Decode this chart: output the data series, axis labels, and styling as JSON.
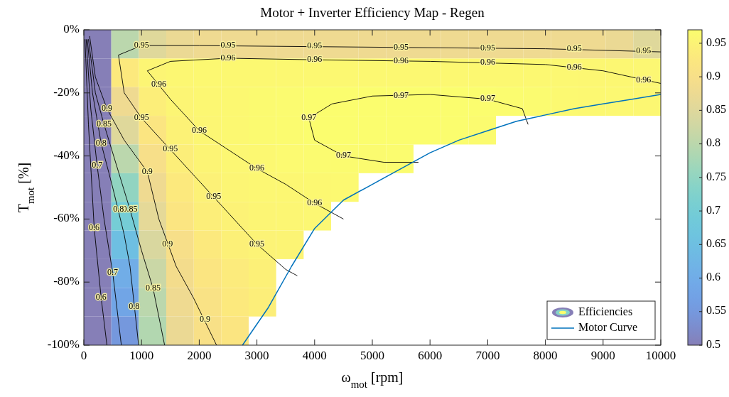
{
  "chart_data": {
    "type": "heatmap",
    "title": "Motor + Inverter Efficiency Map - Regen",
    "xlabel": "ω$_{mot}$ [rpm]",
    "ylabel": "T$_{mot}$ [%]",
    "xlim": [
      0,
      10000
    ],
    "xticks": [
      0,
      1000,
      2000,
      3000,
      4000,
      5000,
      6000,
      7000,
      8000,
      9000,
      10000
    ],
    "ylim": [
      -100,
      0
    ],
    "yticks": [
      {
        "value": -100,
        "label": "-100%"
      },
      {
        "value": -80,
        "label": "-80%"
      },
      {
        "value": -60,
        "label": "-60%"
      },
      {
        "value": -40,
        "label": "-40%"
      },
      {
        "value": -20,
        "label": "-20%"
      },
      {
        "value": 0,
        "label": "0%"
      }
    ],
    "clim": [
      0.5,
      0.97
    ],
    "cticks": [
      0.5,
      0.55,
      0.6,
      0.65,
      0.7,
      0.75,
      0.8,
      0.85,
      0.9,
      0.95
    ],
    "legend": "bottom right",
    "legend_title": "Efficiencies",
    "line_style": "solid",
    "cells": [
      [
        0.5,
        0.8,
        0.85,
        0.87,
        0.88,
        0.88,
        0.88,
        0.88,
        0.88,
        0.88,
        0.88,
        0.88,
        0.88,
        0.88,
        0.88,
        0.88,
        0.88,
        0.88,
        0.88,
        0.87,
        0.85
      ],
      [
        0.5,
        0.93,
        0.955,
        0.96,
        0.962,
        0.962,
        0.962,
        0.962,
        0.962,
        0.962,
        0.962,
        0.962,
        0.962,
        0.962,
        0.962,
        0.962,
        0.962,
        0.961,
        0.96,
        0.96,
        0.958
      ],
      [
        0.5,
        0.88,
        0.94,
        0.955,
        0.96,
        0.962,
        0.965,
        0.967,
        0.97,
        0.972,
        0.972,
        0.972,
        0.972,
        0.972,
        0.972,
        0.969,
        0.966,
        0.963,
        0.962,
        0.961,
        0.96
      ],
      [
        0.5,
        0.85,
        0.92,
        0.95,
        0.957,
        0.962,
        0.965,
        0.968,
        0.971,
        0.973,
        0.973,
        0.973,
        0.972,
        0.97,
        0.968,
        null,
        null,
        null,
        null,
        null,
        null
      ],
      [
        0.5,
        0.8,
        0.9,
        0.94,
        0.953,
        0.959,
        0.962,
        0.964,
        0.966,
        0.968,
        0.968,
        0.969,
        null,
        null,
        null,
        null,
        null,
        null,
        null,
        null,
        null
      ],
      [
        0.5,
        0.75,
        0.88,
        0.93,
        0.948,
        0.955,
        0.958,
        0.96,
        0.962,
        0.963,
        null,
        null,
        null,
        null,
        null,
        null,
        null,
        null,
        null,
        null,
        null
      ],
      [
        0.5,
        0.7,
        0.86,
        0.92,
        0.94,
        0.95,
        0.955,
        0.957,
        0.958,
        null,
        null,
        null,
        null,
        null,
        null,
        null,
        null,
        null,
        null,
        null,
        null
      ],
      [
        0.5,
        0.65,
        0.84,
        0.9,
        0.93,
        0.945,
        0.951,
        0.953,
        null,
        null,
        null,
        null,
        null,
        null,
        null,
        null,
        null,
        null,
        null,
        null,
        null
      ],
      [
        0.5,
        0.6,
        0.82,
        0.89,
        0.92,
        0.935,
        0.945,
        null,
        null,
        null,
        null,
        null,
        null,
        null,
        null,
        null,
        null,
        null,
        null,
        null,
        null
      ],
      [
        0.5,
        0.58,
        0.8,
        0.88,
        0.91,
        0.93,
        0.94,
        null,
        null,
        null,
        null,
        null,
        null,
        null,
        null,
        null,
        null,
        null,
        null,
        null,
        null
      ],
      [
        0.5,
        0.55,
        0.79,
        0.87,
        0.905,
        0.92,
        null,
        null,
        null,
        null,
        null,
        null,
        null,
        null,
        null,
        null,
        null,
        null,
        null,
        null,
        null
      ]
    ],
    "series": [
      {
        "type": "line",
        "color": "#000000",
        "x": [
          7700,
          7600,
          7000,
          6000,
          5000,
          4300,
          3900,
          4000,
          4500,
          5200,
          5800
        ],
        "values": [
          -30,
          -25,
          -22,
          -20.5,
          -21,
          -23.5,
          -28,
          -35,
          -40,
          -42,
          -42
        ]
      },
      {
        "type": "line",
        "color": "#000000",
        "x": [
          10000,
          9000,
          8000,
          6000,
          4000,
          2500,
          1500,
          1100,
          1500,
          2000,
          2500,
          3000,
          3500,
          4000,
          4500
        ],
        "values": [
          -17,
          -13,
          -11,
          -10,
          -9.5,
          -9,
          -10,
          -13,
          -22,
          -32,
          -38,
          -44,
          -49,
          -55,
          -60
        ]
      },
      {
        "type": "line",
        "color": "#000000",
        "x": [
          10000,
          8000,
          5000,
          2000,
          1000,
          600,
          700,
          1000,
          1500,
          2000,
          2500,
          3000,
          3500,
          3700
        ],
        "values": [
          -7,
          -6,
          -5.5,
          -5,
          -5,
          -8,
          -20,
          -28,
          -38,
          -48,
          -58,
          -68,
          -76,
          -78
        ]
      },
      {
        "type": "line",
        "color": "#000000",
        "x": [
          100,
          200,
          400,
          700,
          1100,
          1300,
          1600,
          1900,
          2300
        ],
        "values": [
          -2,
          -15,
          -25,
          -35,
          -45,
          -60,
          -75,
          -85,
          -100
        ]
      },
      {
        "type": "line",
        "color": "#000000",
        "x": [
          80,
          200,
          350,
          600,
          800,
          1000,
          1200,
          1400
        ],
        "values": [
          -3,
          -20,
          -30,
          -45,
          -57,
          -70,
          -82,
          -100
        ]
      },
      {
        "type": "line",
        "color": "#000000",
        "x": [
          60,
          150,
          300,
          500,
          700,
          800,
          950
        ],
        "values": [
          -3,
          -20,
          -36,
          -50,
          -65,
          -75,
          -100
        ]
      },
      {
        "type": "line",
        "color": "#000000",
        "x": [
          40,
          120,
          230,
          350,
          500,
          650
        ],
        "values": [
          -3,
          -25,
          -43,
          -60,
          -77,
          -100
        ]
      },
      {
        "type": "line",
        "color": "#000000",
        "x": [
          20,
          80,
          180,
          300,
          400
        ],
        "values": [
          -3,
          -30,
          -63,
          -85,
          -100
        ]
      },
      {
        "type": "line",
        "name": "Motor Curve",
        "color": "#0072bd",
        "x": [
          2750,
          3200,
          3600,
          4000,
          4500,
          5000,
          5500,
          6000,
          6500,
          7000,
          7500,
          8000,
          8500,
          9000,
          9500,
          10000
        ],
        "values": [
          -100,
          -88,
          -75,
          -63,
          -54,
          -49,
          -44,
          -39,
          -35,
          -32,
          -29,
          -27,
          -25,
          -23.5,
          -22,
          -20.5
        ]
      }
    ],
    "annotations": [
      {
        "text": "0.97",
        "x": 5500,
        "y": -21
      },
      {
        "text": "0.97",
        "x": 7000,
        "y": -22
      },
      {
        "text": "0.97",
        "x": 3900,
        "y": -28
      },
      {
        "text": "0.97",
        "x": 4500,
        "y": -40
      },
      {
        "text": "0.96",
        "x": 1300,
        "y": -17.5
      },
      {
        "text": "0.96",
        "x": 2500,
        "y": -9
      },
      {
        "text": "0.96",
        "x": 4000,
        "y": -9.5
      },
      {
        "text": "0.96",
        "x": 5500,
        "y": -10
      },
      {
        "text": "0.96",
        "x": 7000,
        "y": -10.5
      },
      {
        "text": "0.96",
        "x": 8500,
        "y": -12
      },
      {
        "text": "0.96",
        "x": 9700,
        "y": -16
      },
      {
        "text": "0.96",
        "x": 2000,
        "y": -32
      },
      {
        "text": "0.96",
        "x": 3000,
        "y": -44
      },
      {
        "text": "0.96",
        "x": 4000,
        "y": -55
      },
      {
        "text": "0.95",
        "x": 1000,
        "y": -5
      },
      {
        "text": "0.95",
        "x": 2500,
        "y": -5
      },
      {
        "text": "0.95",
        "x": 4000,
        "y": -5.3
      },
      {
        "text": "0.95",
        "x": 5500,
        "y": -5.6
      },
      {
        "text": "0.95",
        "x": 7000,
        "y": -5.8
      },
      {
        "text": "0.95",
        "x": 8500,
        "y": -6.2
      },
      {
        "text": "0.95",
        "x": 9700,
        "y": -6.8
      },
      {
        "text": "0.95",
        "x": 1000,
        "y": -28
      },
      {
        "text": "0.95",
        "x": 1500,
        "y": -38
      },
      {
        "text": "0.95",
        "x": 2250,
        "y": -53
      },
      {
        "text": "0.95",
        "x": 3000,
        "y": -68
      },
      {
        "text": "0.9",
        "x": 400,
        "y": -25
      },
      {
        "text": "0.9",
        "x": 1100,
        "y": -45
      },
      {
        "text": "0.9",
        "x": 1450,
        "y": -68
      },
      {
        "text": "0.9",
        "x": 2100,
        "y": -92
      },
      {
        "text": "0.85",
        "x": 350,
        "y": -30
      },
      {
        "text": "0.85",
        "x": 800,
        "y": -57
      },
      {
        "text": "0.85",
        "x": 1200,
        "y": -82
      },
      {
        "text": "0.8",
        "x": 300,
        "y": -36
      },
      {
        "text": "0.8",
        "x": 600,
        "y": -57
      },
      {
        "text": "0.8",
        "x": 870,
        "y": -88
      },
      {
        "text": "0.7",
        "x": 230,
        "y": -43
      },
      {
        "text": "0.7",
        "x": 500,
        "y": -77
      },
      {
        "text": "0.6",
        "x": 180,
        "y": -63
      },
      {
        "text": "0.6",
        "x": 300,
        "y": -85
      }
    ]
  }
}
